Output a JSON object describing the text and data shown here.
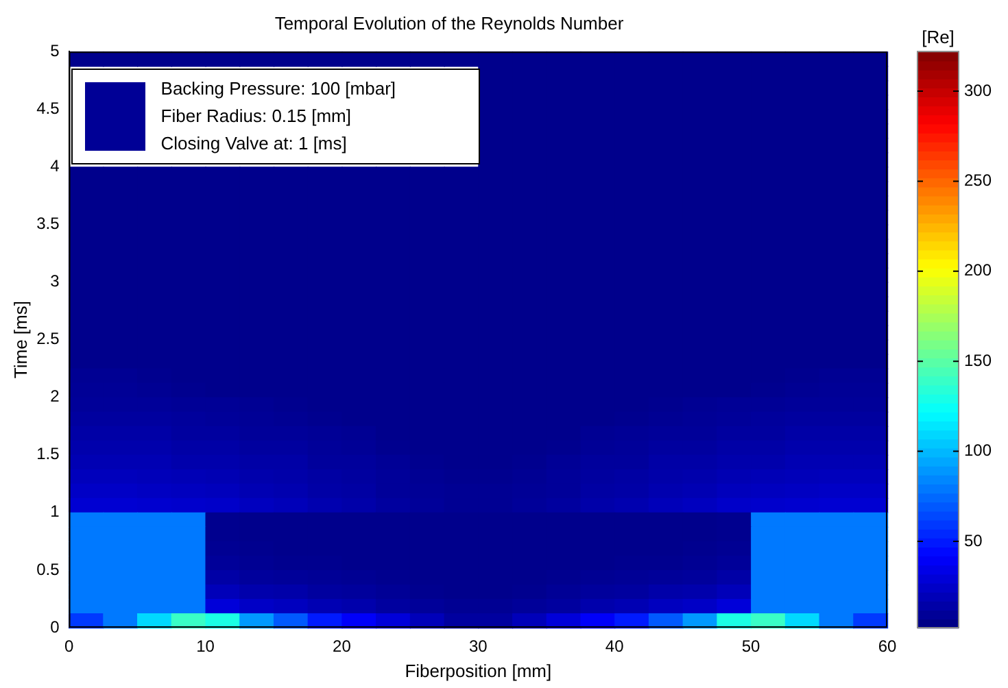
{
  "chart_data": {
    "type": "heatmap",
    "title": "Temporal Evolution of the Reynolds Number",
    "xlabel": "Fiberposition [mm]",
    "ylabel": "Time [ms]",
    "clabel": "[Re]",
    "annotations": [
      "Backing Pressure: 100 [mbar]",
      "Fiber Radius: 0.15 [mm]",
      "Closing Valve at: 1 [ms]"
    ],
    "x": [
      1.25,
      3.75,
      6.25,
      8.75,
      11.25,
      13.75,
      16.25,
      18.75,
      21.25,
      23.75,
      26.25,
      28.75,
      31.25,
      33.75,
      36.25,
      38.75,
      41.25,
      43.75,
      46.25,
      48.75,
      51.25,
      53.75,
      56.25,
      58.75
    ],
    "y": [
      4.9375,
      4.8125,
      4.6875,
      4.5625,
      4.4375,
      4.3125,
      4.1875,
      4.0625,
      3.9375,
      3.8125,
      3.6875,
      3.5625,
      3.4375,
      3.3125,
      3.1875,
      3.0625,
      2.9375,
      2.8125,
      2.6875,
      2.5625,
      2.4375,
      2.3125,
      2.1875,
      2.0625,
      1.9375,
      1.8125,
      1.6875,
      1.5625,
      1.4375,
      1.3125,
      1.1875,
      1.0625,
      0.9375,
      0.8125,
      0.6875,
      0.5625,
      0.4375,
      0.3125,
      0.1875,
      0.0625
    ],
    "cells": [
      [
        6,
        6,
        6,
        6,
        6,
        6,
        6,
        6,
        6,
        6,
        6,
        6,
        6,
        6,
        6,
        6,
        6,
        6,
        6,
        6,
        6,
        6,
        6,
        6
      ],
      [
        null,
        null,
        null,
        null,
        null,
        null,
        null,
        null,
        null,
        null,
        null,
        null,
        6,
        6,
        6,
        6,
        6,
        6,
        6,
        6,
        6,
        6,
        6,
        6
      ],
      [
        null,
        null,
        null,
        null,
        null,
        null,
        null,
        null,
        null,
        null,
        null,
        null,
        6,
        6,
        6,
        6,
        6,
        6,
        6,
        6,
        6,
        6,
        6,
        6
      ],
      [
        null,
        null,
        null,
        null,
        null,
        null,
        null,
        null,
        null,
        null,
        null,
        null,
        6,
        6,
        6,
        6,
        6,
        6,
        6,
        6,
        6,
        6,
        6,
        6
      ],
      [
        null,
        null,
        null,
        null,
        null,
        null,
        null,
        null,
        null,
        null,
        null,
        null,
        6,
        6,
        6,
        6,
        6,
        6,
        6,
        6,
        6,
        6,
        6,
        6
      ],
      [
        null,
        null,
        null,
        null,
        null,
        null,
        null,
        null,
        null,
        null,
        null,
        null,
        6,
        6,
        6,
        6,
        6,
        6,
        6,
        6,
        6,
        6,
        6,
        6
      ],
      [
        null,
        null,
        null,
        null,
        null,
        null,
        null,
        null,
        null,
        null,
        null,
        null,
        6,
        6,
        6,
        6,
        6,
        6,
        6,
        6,
        6,
        6,
        6,
        6
      ],
      [
        null,
        null,
        null,
        null,
        null,
        null,
        null,
        null,
        null,
        null,
        null,
        null,
        6,
        6,
        6,
        6,
        6,
        6,
        6,
        6,
        6,
        6,
        6,
        6
      ],
      [
        6,
        6,
        6,
        6,
        6,
        6,
        6,
        6,
        6,
        6,
        6,
        6,
        6,
        6,
        6,
        6,
        6,
        6,
        6,
        6,
        6,
        6,
        6,
        6
      ],
      [
        6,
        6,
        6,
        6,
        6,
        6,
        6,
        6,
        6,
        6,
        6,
        6,
        6,
        6,
        6,
        6,
        6,
        6,
        6,
        6,
        6,
        6,
        6,
        6
      ],
      [
        6,
        6,
        6,
        6,
        6,
        6,
        6,
        6,
        6,
        6,
        6,
        6,
        6,
        6,
        6,
        6,
        6,
        6,
        6,
        6,
        6,
        6,
        6,
        6
      ],
      [
        6,
        6,
        6,
        6,
        6,
        6,
        6,
        6,
        6,
        6,
        6,
        6,
        6,
        6,
        6,
        6,
        6,
        6,
        6,
        6,
        6,
        6,
        6,
        6
      ],
      [
        6,
        6,
        6,
        6,
        6,
        6,
        6,
        6,
        6,
        6,
        6,
        6,
        6,
        6,
        6,
        6,
        6,
        6,
        6,
        6,
        6,
        6,
        6,
        6
      ],
      [
        6,
        6,
        6,
        6,
        6,
        6,
        6,
        6,
        6,
        6,
        6,
        6,
        6,
        6,
        6,
        6,
        6,
        6,
        6,
        6,
        6,
        6,
        6,
        6
      ],
      [
        6,
        6,
        6,
        6,
        6,
        6,
        6,
        6,
        6,
        6,
        6,
        6,
        6,
        6,
        6,
        6,
        6,
        6,
        6,
        6,
        6,
        6,
        6,
        6
      ],
      [
        6,
        6,
        6,
        6,
        6,
        6,
        6,
        6,
        6,
        6,
        6,
        6,
        6,
        6,
        6,
        6,
        6,
        6,
        6,
        6,
        6,
        6,
        6,
        6
      ],
      [
        6,
        6,
        6,
        6,
        6,
        6,
        6,
        6,
        6,
        6,
        6,
        6,
        6,
        6,
        6,
        6,
        6,
        6,
        6,
        6,
        6,
        6,
        6,
        6
      ],
      [
        6,
        6,
        6,
        6,
        6,
        6,
        6,
        6,
        6,
        6,
        6,
        6,
        6,
        6,
        6,
        6,
        6,
        6,
        6,
        6,
        6,
        6,
        6,
        6
      ],
      [
        6,
        6,
        6,
        6,
        6,
        6,
        6,
        6,
        6,
        6,
        6,
        6,
        6,
        6,
        6,
        6,
        6,
        6,
        6,
        6,
        6,
        6,
        6,
        6
      ],
      [
        6,
        6,
        6,
        6,
        6,
        6,
        6,
        6,
        6,
        6,
        6,
        6,
        6,
        6,
        6,
        6,
        6,
        6,
        6,
        6,
        6,
        6,
        6,
        6
      ],
      [
        6,
        6,
        6,
        6,
        6,
        6,
        6,
        6,
        6,
        6,
        6,
        6,
        6,
        6,
        6,
        6,
        6,
        6,
        6,
        6,
        6,
        6,
        6,
        6
      ],
      [
        6,
        6,
        6,
        6,
        6,
        6,
        6,
        6,
        6,
        6,
        6,
        6,
        6,
        6,
        6,
        6,
        6,
        6,
        6,
        6,
        6,
        6,
        6,
        6
      ],
      [
        8,
        8,
        7,
        6,
        6,
        6,
        6,
        6,
        6,
        6,
        6,
        6,
        6,
        6,
        6,
        6,
        6,
        6,
        6,
        6,
        6,
        7,
        8,
        8
      ],
      [
        9,
        9,
        8,
        7,
        6,
        6,
        6,
        6,
        6,
        6,
        6,
        6,
        6,
        6,
        6,
        6,
        6,
        6,
        6,
        6,
        7,
        8,
        9,
        9
      ],
      [
        10,
        10,
        10,
        9,
        9,
        8,
        7,
        6,
        6,
        6,
        6,
        6,
        6,
        6,
        6,
        6,
        6,
        7,
        8,
        9,
        9,
        10,
        10,
        10
      ],
      [
        12,
        12,
        12,
        11,
        10,
        9,
        8,
        7,
        6,
        6,
        6,
        6,
        6,
        6,
        6,
        6,
        7,
        8,
        9,
        10,
        11,
        12,
        12,
        12
      ],
      [
        14,
        14,
        14,
        12,
        12,
        10,
        10,
        9,
        8,
        6,
        6,
        6,
        6,
        6,
        6,
        8,
        9,
        10,
        10,
        12,
        12,
        14,
        14,
        14
      ],
      [
        16,
        16,
        16,
        14,
        14,
        12,
        12,
        10,
        9,
        7,
        6,
        6,
        6,
        6,
        7,
        9,
        10,
        12,
        12,
        14,
        14,
        16,
        16,
        16
      ],
      [
        18,
        18,
        18,
        16,
        16,
        14,
        14,
        11,
        11,
        9,
        7,
        6,
        6,
        7,
        9,
        11,
        11,
        14,
        14,
        16,
        16,
        18,
        18,
        18
      ],
      [
        21,
        21,
        20,
        19,
        18,
        16,
        15,
        13,
        12,
        10,
        8,
        7,
        7,
        8,
        10,
        12,
        13,
        15,
        16,
        18,
        19,
        20,
        21,
        21
      ],
      [
        24,
        24,
        23,
        22,
        21,
        18,
        17,
        14,
        13,
        10,
        9,
        8,
        8,
        9,
        10,
        13,
        14,
        17,
        18,
        21,
        22,
        23,
        24,
        24
      ],
      [
        28,
        28,
        27,
        26,
        25,
        22,
        20,
        17,
        15,
        12,
        10,
        8,
        8,
        10,
        12,
        15,
        17,
        20,
        22,
        25,
        26,
        27,
        28,
        28
      ],
      [
        80,
        80,
        80,
        80,
        7,
        6,
        6,
        6,
        6,
        6,
        6,
        6,
        6,
        6,
        6,
        6,
        6,
        6,
        6,
        7,
        80,
        80,
        80,
        80
      ],
      [
        80,
        80,
        80,
        80,
        7,
        6,
        6,
        6,
        6,
        6,
        6,
        6,
        6,
        6,
        6,
        6,
        6,
        6,
        6,
        7,
        80,
        80,
        80,
        80
      ],
      [
        80,
        80,
        80,
        80,
        8,
        7,
        6,
        6,
        6,
        6,
        6,
        6,
        6,
        6,
        6,
        6,
        6,
        6,
        7,
        8,
        80,
        80,
        80,
        80
      ],
      [
        80,
        80,
        80,
        80,
        10,
        8,
        7,
        7,
        6,
        6,
        6,
        6,
        6,
        6,
        6,
        6,
        7,
        7,
        8,
        10,
        80,
        80,
        80,
        80
      ],
      [
        80,
        80,
        80,
        80,
        14,
        11,
        10,
        9,
        8,
        7,
        6,
        6,
        6,
        6,
        7,
        8,
        9,
        10,
        11,
        14,
        80,
        80,
        80,
        80
      ],
      [
        80,
        80,
        80,
        80,
        20,
        16,
        15,
        12,
        11,
        9,
        7,
        6,
        6,
        7,
        9,
        11,
        12,
        15,
        16,
        20,
        80,
        80,
        80,
        80
      ],
      [
        80,
        80,
        80,
        80,
        30,
        24,
        22,
        18,
        16,
        12,
        10,
        8,
        8,
        10,
        12,
        16,
        18,
        22,
        24,
        30,
        80,
        80,
        80,
        80
      ],
      [
        60,
        80,
        110,
        140,
        130,
        90,
        70,
        50,
        40,
        30,
        20,
        12,
        12,
        20,
        30,
        40,
        50,
        70,
        90,
        130,
        140,
        110,
        80,
        60
      ]
    ],
    "xlim": [
      0,
      60
    ],
    "xticks": [
      0,
      10,
      20,
      30,
      40,
      50,
      60
    ],
    "ylim": [
      0,
      5
    ],
    "yticks": [
      0,
      0.5,
      1,
      1.5,
      2,
      2.5,
      3,
      3.5,
      4,
      4.5,
      5
    ],
    "clim": [
      2,
      322
    ],
    "cticks": [
      50,
      100,
      150,
      200,
      250,
      300
    ]
  }
}
